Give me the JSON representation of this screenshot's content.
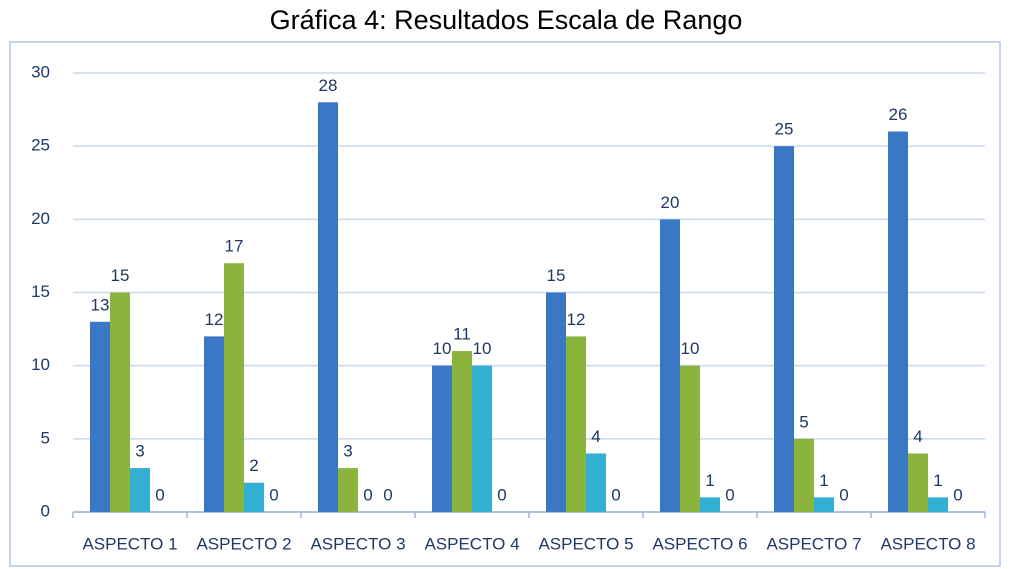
{
  "chart_data": {
    "type": "bar",
    "title": "Gráfica 4: Resultados Escala de Rango",
    "categories": [
      "ASPECTO 1",
      "ASPECTO 2",
      "ASPECTO 3",
      "ASPECTO 4",
      "ASPECTO 5",
      "ASPECTO 6",
      "ASPECTO 7",
      "ASPECTO 8"
    ],
    "series": [
      {
        "color": "#3a78c6",
        "values": [
          13,
          12,
          28,
          10,
          15,
          20,
          25,
          26
        ]
      },
      {
        "color": "#8ab43c",
        "values": [
          15,
          17,
          3,
          11,
          12,
          10,
          5,
          4
        ]
      },
      {
        "color": "#33afd3",
        "values": [
          3,
          2,
          0,
          10,
          4,
          1,
          1,
          1
        ]
      },
      {
        "values": [
          0,
          0,
          0,
          0,
          0,
          0,
          0,
          0
        ]
      }
    ],
    "ylim": [
      0,
      30
    ],
    "yticks": [
      0,
      5,
      10,
      15,
      20,
      25,
      30
    ],
    "grid": true
  }
}
